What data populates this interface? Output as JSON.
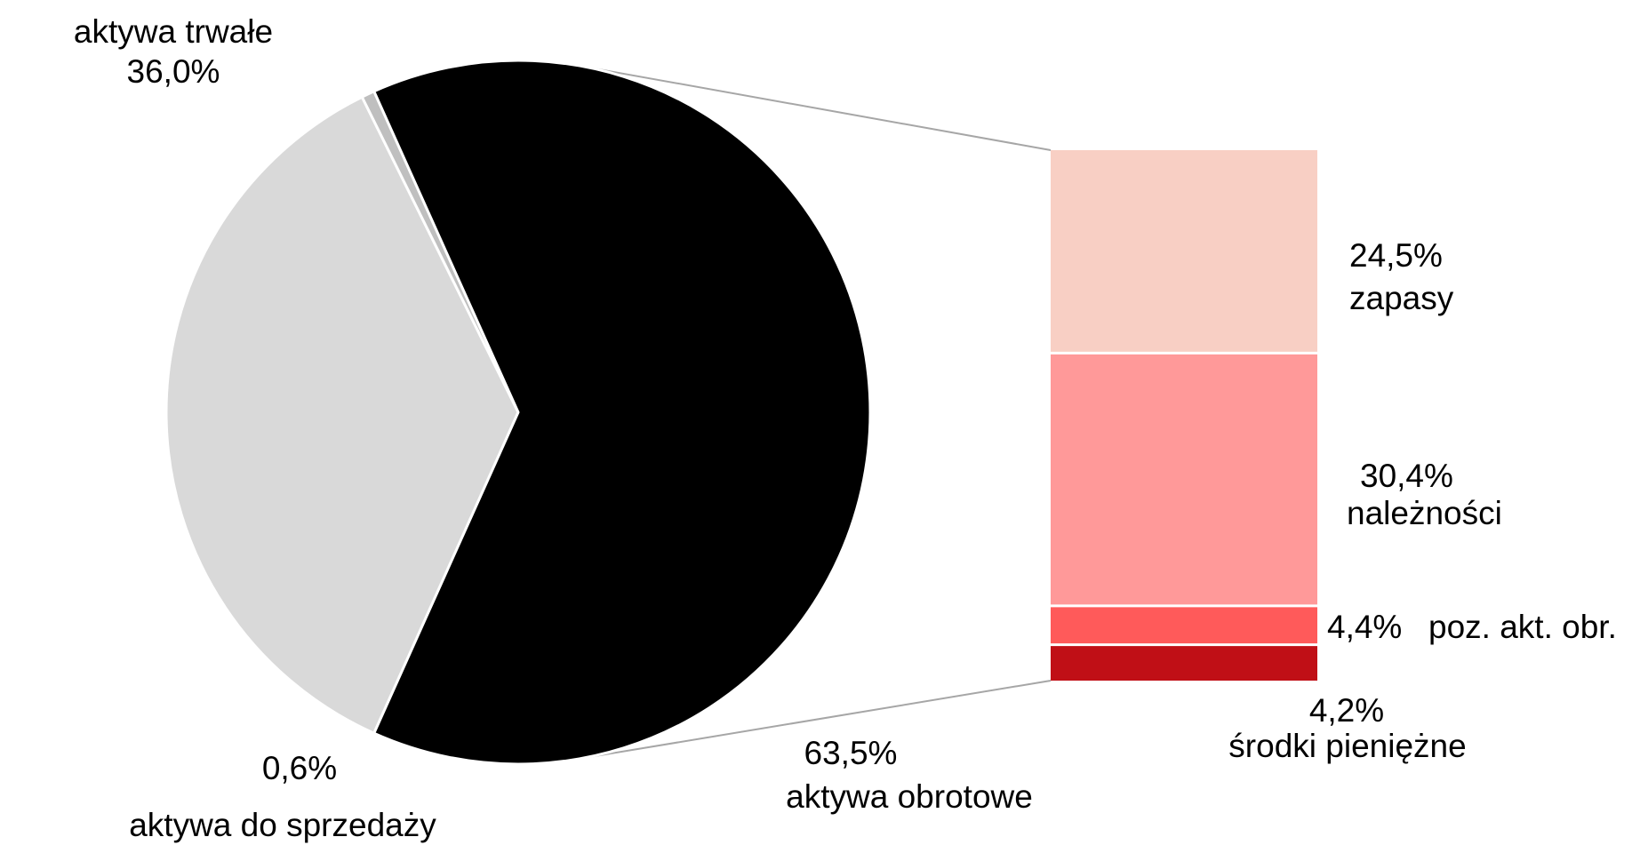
{
  "chart_data": {
    "type": "pie",
    "pie": {
      "slices": [
        {
          "label": "aktywa trwałe",
          "value": 36.0,
          "value_label": "36,0%",
          "color": "#d9d9d9"
        },
        {
          "label": "aktywa do sprzedaży",
          "value": 0.6,
          "value_label": "0,6%",
          "color": "#bfbfbf"
        },
        {
          "label": "aktywa obrotowe",
          "value": 63.5,
          "value_label": "63,5%",
          "color": "#000000"
        }
      ]
    },
    "breakdown": {
      "of": "aktywa obrotowe",
      "segments": [
        {
          "label": "zapasy",
          "value": 24.5,
          "value_label": "24,5%",
          "color": "#f8cfc4"
        },
        {
          "label": "należności",
          "value": 30.4,
          "value_label": "30,4%",
          "color": "#ff9999"
        },
        {
          "label": "poz. akt. obr.",
          "value": 4.4,
          "value_label": "4,4%",
          "color": "#ff5a5a"
        },
        {
          "label": "środki pieniężne",
          "value": 4.2,
          "value_label": "4,2%",
          "color": "#c00f16"
        }
      ]
    }
  }
}
